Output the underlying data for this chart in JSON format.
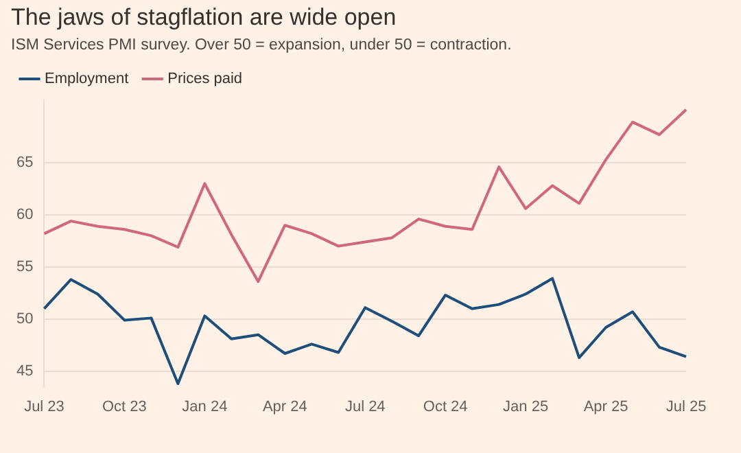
{
  "chart_data": {
    "type": "line",
    "title": "The jaws of stagflation are wide open",
    "subtitle": "ISM Services PMI survey. Over 50 = expansion, under 50 = contraction.",
    "categories": [
      "Jul 23",
      null,
      null,
      "Oct 23",
      null,
      null,
      "Jan 24",
      null,
      null,
      "Apr 24",
      null,
      null,
      "Jul 24",
      null,
      null,
      "Oct 24",
      null,
      null,
      "Jan 25",
      null,
      null,
      "Apr 25",
      null,
      null,
      "Jul 25"
    ],
    "series": [
      {
        "name": "Employment",
        "color": "#1d4f7a",
        "values": [
          51.0,
          53.8,
          52.4,
          49.9,
          50.1,
          43.8,
          50.3,
          48.1,
          48.5,
          46.7,
          47.6,
          46.8,
          51.1,
          49.8,
          48.4,
          52.3,
          51.0,
          51.4,
          52.4,
          53.9,
          46.3,
          49.2,
          50.7,
          47.3,
          46.4
        ]
      },
      {
        "name": "Prices paid",
        "color": "#d0687b",
        "values": [
          58.2,
          59.4,
          58.9,
          58.6,
          58.0,
          56.9,
          63.0,
          58.1,
          53.6,
          59.0,
          58.2,
          57.0,
          57.4,
          57.8,
          59.6,
          58.9,
          58.6,
          64.6,
          60.6,
          62.8,
          61.1,
          65.3,
          68.9,
          67.7,
          70.1
        ]
      }
    ],
    "ylim": [
      43.5,
      71
    ],
    "yticks": [
      45,
      50,
      55,
      60,
      65
    ],
    "grid": "y",
    "legend": "top left",
    "marker": "none",
    "line_style": "solid"
  }
}
